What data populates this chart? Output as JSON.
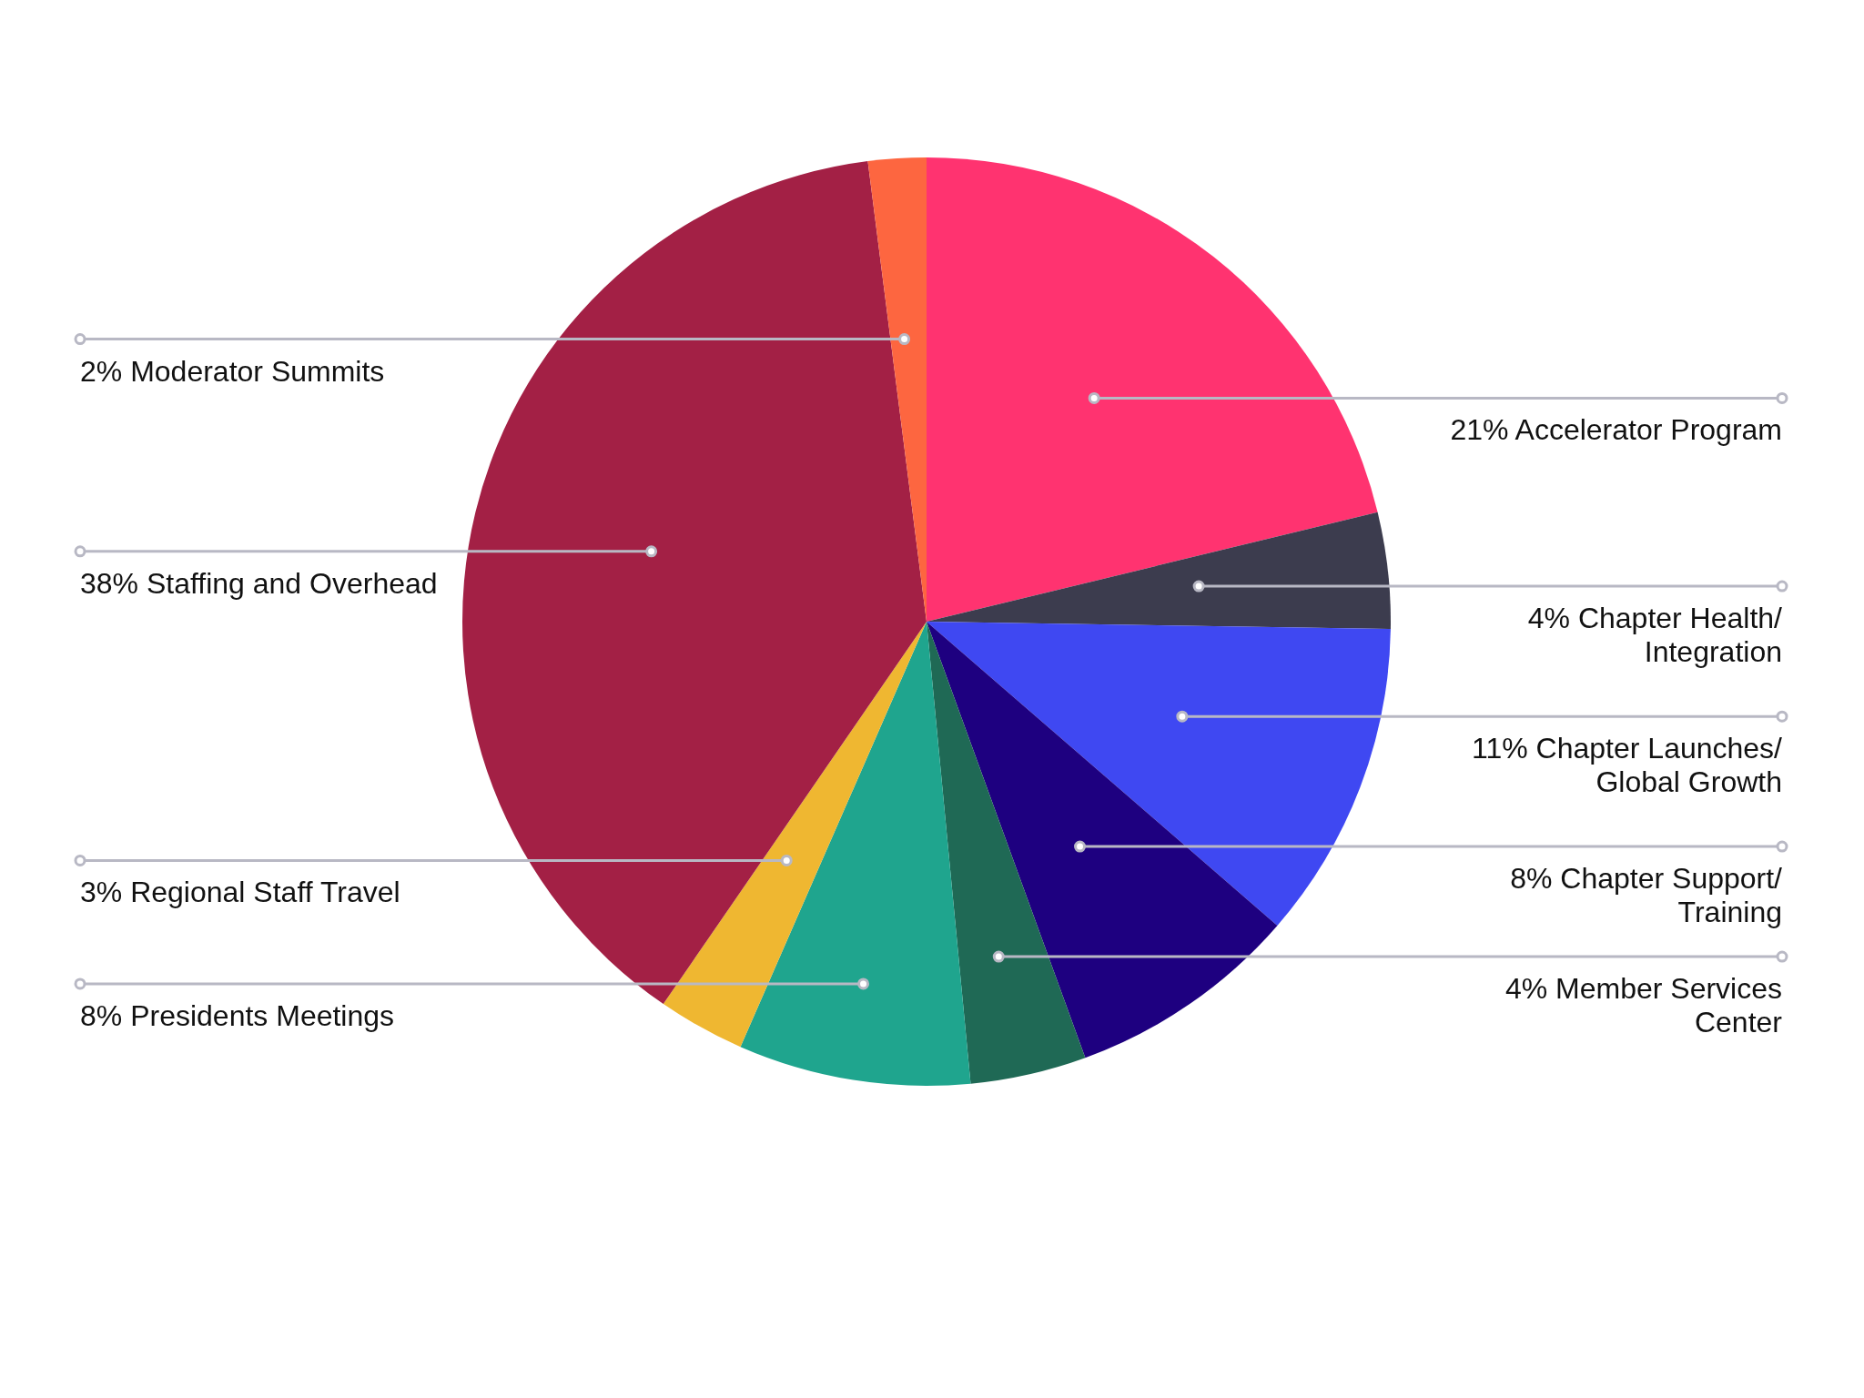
{
  "chart_data": {
    "type": "pie",
    "categories": [
      "Accelerator Program",
      "Chapter Health/Integration",
      "Chapter Launches/Global Growth",
      "Chapter Support/Training",
      "Member Services Center",
      "Presidents Meetings",
      "Regional Staff Travel",
      "Staffing and Overhead",
      "Moderator Summits"
    ],
    "values": [
      21,
      4,
      11,
      8,
      4,
      8,
      3,
      38,
      2
    ],
    "value_labels": [
      "21%",
      "4%",
      "11%",
      "8%",
      "4%",
      "8%",
      "3%",
      "38%",
      "2%"
    ],
    "colors": [
      "#ff3370",
      "#3c3c4e",
      "#3f48f2",
      "#1e0080",
      "#1f6955",
      "#1fa58e",
      "#efb731",
      "#a32045",
      "#fd6640"
    ]
  }
}
